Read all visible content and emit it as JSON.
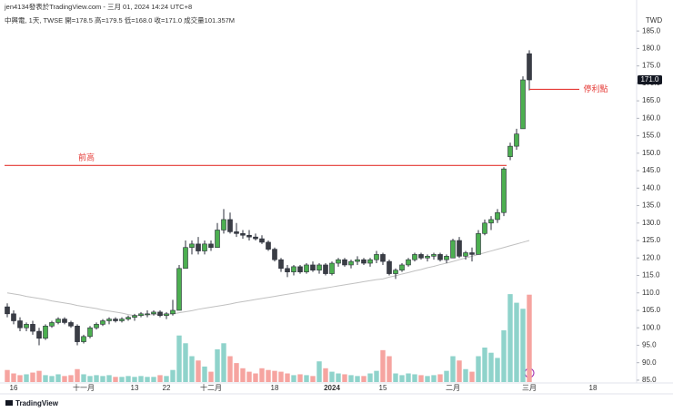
{
  "chart_data": {
    "type": "candlestick",
    "header": "jen4134發表於TradingView.com - 三月 01, 2024 14:24 UTC+8",
    "legend_text": "中興電, 1天, TWSE  開=178.5  高=179.5  低=168.0  收=171.0  成交量101.357M",
    "currency": "TWD",
    "logo": "TradingView",
    "categories": [
      null,
      "16",
      null,
      null,
      null,
      null,
      null,
      null,
      null,
      null,
      null,
      null,
      "十一月",
      null,
      null,
      null,
      null,
      null,
      null,
      null,
      "13",
      null,
      null,
      null,
      null,
      "22",
      null,
      null,
      null,
      null,
      null,
      null,
      "十二月",
      null,
      null,
      null,
      null,
      null,
      null,
      null,
      null,
      null,
      "18",
      null,
      null,
      null,
      null,
      null,
      null,
      null,
      null,
      "2024",
      null,
      null,
      null,
      null,
      null,
      null,
      null,
      "15",
      null,
      null,
      null,
      null,
      null,
      null,
      null,
      null,
      null,
      null,
      "二月",
      null,
      null,
      null,
      null,
      null,
      null,
      null,
      null,
      null,
      null,
      null,
      "三月",
      null,
      null,
      null,
      null,
      null,
      null,
      null,
      null,
      null,
      "18",
      null,
      null,
      null,
      null,
      null,
      null
    ],
    "open": [
      106,
      104,
      102,
      100,
      101,
      99,
      97,
      100.5,
      101.5,
      102.5,
      101.5,
      100.5,
      96,
      97.5,
      100,
      101,
      102,
      102.5,
      102,
      102.5,
      103,
      103.5,
      104,
      104,
      104.5,
      103.5,
      104,
      105,
      117,
      123,
      124,
      122,
      124,
      123,
      128,
      131,
      127.5,
      127,
      126.5,
      126,
      125.5,
      124.5,
      122.5,
      119.5,
      117,
      116,
      117.5,
      116,
      118,
      116.5,
      118,
      115.5,
      118.5,
      119.5,
      118,
      119,
      119.5,
      118.5,
      119.5,
      121,
      119,
      115.5,
      116.5,
      118,
      119.5,
      121,
      120,
      120.5,
      121,
      119.5,
      120,
      125,
      120.5,
      121.5,
      121,
      127,
      130,
      131,
      133,
      149,
      152,
      157,
      178.5,
      null,
      null,
      null,
      null,
      null,
      null,
      null,
      null,
      null,
      null,
      null,
      null,
      null,
      null,
      null,
      null
    ],
    "high": [
      107,
      105,
      103,
      101.5,
      102,
      100,
      101,
      102,
      103,
      103,
      102,
      101,
      98,
      100.5,
      101.5,
      102.5,
      103,
      103,
      103,
      103.5,
      104,
      104.5,
      105,
      105,
      105,
      104.5,
      108,
      118,
      125,
      125,
      126,
      125,
      125,
      130,
      134,
      133,
      130,
      128,
      128,
      127,
      126.5,
      125,
      123,
      120,
      118,
      118,
      118,
      118.5,
      119,
      118.5,
      118.5,
      119,
      120,
      120,
      119.5,
      120.5,
      120,
      120,
      122,
      121.5,
      119.5,
      117,
      118.5,
      120,
      121.5,
      121.5,
      121,
      121.5,
      121.5,
      121,
      125.5,
      126,
      122,
      123,
      128,
      131,
      132,
      134,
      146,
      153,
      157,
      172,
      179.5,
      null,
      null,
      null,
      null,
      null,
      null,
      null,
      null,
      null,
      null,
      null,
      null,
      null,
      null,
      null,
      null
    ],
    "low": [
      103,
      101,
      99,
      99,
      98,
      95,
      96.5,
      100,
      101,
      101,
      100,
      95,
      95.5,
      97,
      99.5,
      100.5,
      101,
      101.5,
      101.5,
      102,
      102,
      103,
      103,
      103.5,
      103,
      102.5,
      103.5,
      105,
      117,
      121,
      121,
      121,
      122,
      123,
      127,
      127,
      126,
      125.5,
      125,
      125,
      124,
      122,
      119,
      116,
      114.5,
      115,
      115.5,
      115.5,
      116,
      115.5,
      115,
      115,
      117.5,
      117.5,
      117,
      118,
      118,
      117.5,
      118.5,
      118,
      115,
      114,
      116,
      117.5,
      119,
      119.5,
      119,
      119.5,
      119,
      118.5,
      120,
      120,
      119.5,
      119,
      121,
      126.5,
      128,
      130,
      132,
      148,
      151,
      157,
      168,
      null,
      null,
      null,
      null,
      null,
      null,
      null,
      null,
      null,
      null,
      null,
      null,
      null,
      null,
      null,
      null
    ],
    "close": [
      104,
      102,
      100,
      101,
      99,
      97,
      100.5,
      101.5,
      102.5,
      101.5,
      100.5,
      96,
      97.5,
      100,
      101,
      102,
      102.5,
      102,
      102.5,
      103,
      103.5,
      104,
      104,
      104.5,
      103.5,
      104,
      105,
      117,
      123,
      124,
      122,
      124,
      123,
      128,
      131,
      127.5,
      127,
      126.5,
      126,
      125.5,
      124.5,
      122.5,
      119.5,
      117,
      116,
      117.5,
      116,
      118,
      116.5,
      118,
      115.5,
      118.5,
      119.5,
      118,
      119,
      119.5,
      118.5,
      119.5,
      121,
      119,
      115.5,
      116.5,
      118,
      119.5,
      121,
      120,
      120.5,
      121,
      119.5,
      120.5,
      125,
      120.5,
      121.5,
      121,
      127,
      130,
      131,
      133,
      145.5,
      152,
      155.5,
      171,
      171,
      null,
      null,
      null,
      null,
      null,
      null,
      null,
      null,
      null,
      null,
      null,
      null,
      null,
      null,
      null,
      null
    ],
    "volume": [
      14,
      10,
      8,
      9,
      11,
      13,
      8,
      7,
      9,
      7,
      8,
      15,
      9,
      7,
      8,
      7,
      8,
      6,
      6,
      7,
      6,
      7,
      6,
      6,
      8,
      7,
      14,
      54,
      45,
      30,
      25,
      18,
      12,
      38,
      45,
      30,
      22,
      16,
      12,
      10,
      16,
      14,
      13,
      12,
      10,
      8,
      9,
      8,
      7,
      24,
      16,
      12,
      10,
      9,
      8,
      7,
      7,
      10,
      13,
      37,
      30,
      10,
      8,
      10,
      9,
      8,
      7,
      8,
      9,
      13,
      30,
      25,
      15,
      12,
      30,
      40,
      34,
      28,
      60,
      102,
      92,
      85,
      101.357,
      null,
      null,
      null,
      null,
      null,
      null,
      null,
      null,
      null,
      null,
      null,
      null,
      null,
      null,
      null,
      null
    ],
    "ma": [
      110,
      109.7,
      109.4,
      109,
      108.7,
      108.4,
      108.1,
      107.7,
      107.4,
      107.1,
      106.8,
      106.4,
      106.1,
      105.8,
      105.5,
      105.1,
      104.8,
      104.5,
      104.2,
      103.8,
      103.5,
      103.6,
      103.7,
      103.8,
      103.8,
      103.9,
      104,
      104.3,
      104.6,
      104.9,
      105.3,
      105.6,
      105.9,
      106.2,
      106.5,
      106.8,
      107.2,
      107.5,
      107.8,
      108.1,
      108.4,
      108.7,
      109,
      109.3,
      109.6,
      109.9,
      110.2,
      110.5,
      110.8,
      111.1,
      111.4,
      111.7,
      112,
      112.3,
      112.6,
      112.9,
      113.2,
      113.5,
      113.8,
      114,
      114.5,
      114.9,
      115.4,
      115.8,
      116.3,
      116.7,
      117.2,
      117.6,
      118.1,
      118.5,
      119,
      119.5,
      120,
      120.5,
      121,
      121.5,
      122,
      122.5,
      123,
      123.5,
      124,
      124.5,
      125,
      null,
      null,
      null,
      null,
      null,
      null,
      null,
      null,
      null,
      null,
      null,
      null,
      null,
      null,
      null,
      null
    ],
    "up_color": "#4caf50",
    "down_color": "#3a3d45",
    "volume_up_color": "#8fd3cb",
    "volume_down_color": "#f6a4a0",
    "ma_color": "#c0c0c0",
    "ylim": [
      84.2,
      189.2
    ],
    "yticks": [
      {
        "value": 85,
        "label": "85.0"
      },
      {
        "value": 90,
        "label": "90.0"
      },
      {
        "value": 95,
        "label": "95.0"
      },
      {
        "value": 100,
        "label": "100.0"
      },
      {
        "value": 105,
        "label": "105.0"
      },
      {
        "value": 110,
        "label": "110.0"
      },
      {
        "value": 115,
        "label": "115.0"
      },
      {
        "value": 120,
        "label": "120.0"
      },
      {
        "value": 125,
        "label": "125.0"
      },
      {
        "value": 130,
        "label": "130.0"
      },
      {
        "value": 135,
        "label": "135.0"
      },
      {
        "value": 140,
        "label": "140.0"
      },
      {
        "value": 145,
        "label": "145.0"
      },
      {
        "value": 150,
        "label": "150.0"
      },
      {
        "value": 155,
        "label": "155.0"
      },
      {
        "value": 160,
        "label": "160.0"
      },
      {
        "value": 165,
        "label": "165.0"
      },
      {
        "value": 170,
        "label": "170.0"
      },
      {
        "value": 175,
        "label": "175.0"
      },
      {
        "value": 180,
        "label": "180.0"
      },
      {
        "value": 185,
        "label": "185.0"
      }
    ],
    "last_price": {
      "value": 171,
      "label": "171.0"
    },
    "annotations": [
      {
        "text": "前高",
        "value": 146.5,
        "color": "#e53935"
      },
      {
        "text": "停利點",
        "value": 168.3,
        "color": "#e53935"
      }
    ]
  }
}
